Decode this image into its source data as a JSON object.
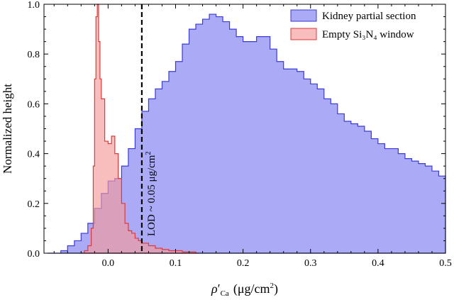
{
  "chart_data": {
    "type": "histogram",
    "xlabel_symbol": "ρ",
    "xlabel_prime": "′",
    "xlabel_subscript": "Ca",
    "xlabel_unit": "(μg/cm",
    "xlabel_unit_exp": "2",
    "xlabel_unit_close": ")",
    "ylabel": "Normalized height",
    "xlim": [
      -0.095,
      0.5
    ],
    "ylim": [
      0,
      1.0
    ],
    "x_ticks": [
      0.0,
      0.1,
      0.2,
      0.3,
      0.4,
      0.5
    ],
    "x_tick_labels": [
      "0.0",
      "0.1",
      "0.2",
      "0.3",
      "0.4",
      "0.5"
    ],
    "y_ticks": [
      0.0,
      0.2,
      0.4,
      0.6,
      0.8,
      1.0
    ],
    "y_tick_labels": [
      "0.0",
      "0.2",
      "0.4",
      "0.6",
      "0.8",
      "1.0"
    ],
    "legend_position": "top-right",
    "series": [
      {
        "name": "Kidney partial section",
        "color": "#3b3bd6",
        "fill": "#9b9bf4",
        "points": [
          [
            -0.09,
            0.0
          ],
          [
            -0.07,
            0.01
          ],
          [
            -0.06,
            0.03
          ],
          [
            -0.05,
            0.05
          ],
          [
            -0.04,
            0.08
          ],
          [
            -0.03,
            0.12
          ],
          [
            -0.02,
            0.18
          ],
          [
            -0.01,
            0.24
          ],
          [
            0.0,
            0.29
          ],
          [
            0.01,
            0.3
          ],
          [
            0.02,
            0.35
          ],
          [
            0.03,
            0.42
          ],
          [
            0.04,
            0.5
          ],
          [
            0.05,
            0.57
          ],
          [
            0.06,
            0.62
          ],
          [
            0.07,
            0.66
          ],
          [
            0.08,
            0.69
          ],
          [
            0.09,
            0.73
          ],
          [
            0.1,
            0.77
          ],
          [
            0.11,
            0.84
          ],
          [
            0.12,
            0.9
          ],
          [
            0.13,
            0.92
          ],
          [
            0.14,
            0.94
          ],
          [
            0.15,
            0.96
          ],
          [
            0.16,
            0.95
          ],
          [
            0.17,
            0.93
          ],
          [
            0.18,
            0.9
          ],
          [
            0.19,
            0.87
          ],
          [
            0.2,
            0.85
          ],
          [
            0.21,
            0.85
          ],
          [
            0.22,
            0.87
          ],
          [
            0.23,
            0.87
          ],
          [
            0.24,
            0.82
          ],
          [
            0.25,
            0.77
          ],
          [
            0.26,
            0.74
          ],
          [
            0.27,
            0.74
          ],
          [
            0.28,
            0.73
          ],
          [
            0.29,
            0.7
          ],
          [
            0.3,
            0.68
          ],
          [
            0.31,
            0.66
          ],
          [
            0.32,
            0.62
          ],
          [
            0.33,
            0.6
          ],
          [
            0.34,
            0.56
          ],
          [
            0.35,
            0.53
          ],
          [
            0.36,
            0.52
          ],
          [
            0.37,
            0.51
          ],
          [
            0.38,
            0.49
          ],
          [
            0.39,
            0.46
          ],
          [
            0.4,
            0.44
          ],
          [
            0.41,
            0.42
          ],
          [
            0.42,
            0.42
          ],
          [
            0.43,
            0.4
          ],
          [
            0.44,
            0.38
          ],
          [
            0.45,
            0.37
          ],
          [
            0.46,
            0.36
          ],
          [
            0.47,
            0.35
          ],
          [
            0.48,
            0.33
          ],
          [
            0.49,
            0.31
          ],
          [
            0.5,
            0.3
          ]
        ]
      },
      {
        "name": "Empty Si₃N₄ window",
        "color": "#e23838",
        "fill": "#f59a9a",
        "points": [
          [
            -0.04,
            0.0
          ],
          [
            -0.035,
            0.01
          ],
          [
            -0.03,
            0.03
          ],
          [
            -0.025,
            0.1
          ],
          [
            -0.022,
            0.35
          ],
          [
            -0.02,
            0.7
          ],
          [
            -0.018,
            0.95
          ],
          [
            -0.016,
            1.0
          ],
          [
            -0.014,
            0.85
          ],
          [
            -0.012,
            0.7
          ],
          [
            -0.01,
            0.62
          ],
          [
            -0.005,
            0.45
          ],
          [
            0.0,
            0.44
          ],
          [
            0.005,
            0.47
          ],
          [
            0.01,
            0.4
          ],
          [
            0.015,
            0.3
          ],
          [
            0.02,
            0.2
          ],
          [
            0.025,
            0.12
          ],
          [
            0.03,
            0.09
          ],
          [
            0.035,
            0.08
          ],
          [
            0.04,
            0.06
          ],
          [
            0.045,
            0.05
          ],
          [
            0.05,
            0.04
          ],
          [
            0.06,
            0.03
          ],
          [
            0.07,
            0.02
          ],
          [
            0.08,
            0.015
          ],
          [
            0.09,
            0.01
          ],
          [
            0.11,
            0.005
          ],
          [
            0.13,
            0.0
          ]
        ]
      }
    ],
    "annotation": {
      "x": 0.05,
      "text": "LOD ~ 0.05 μg/cm",
      "text_exp": "2",
      "style": "dashed vertical line"
    }
  }
}
